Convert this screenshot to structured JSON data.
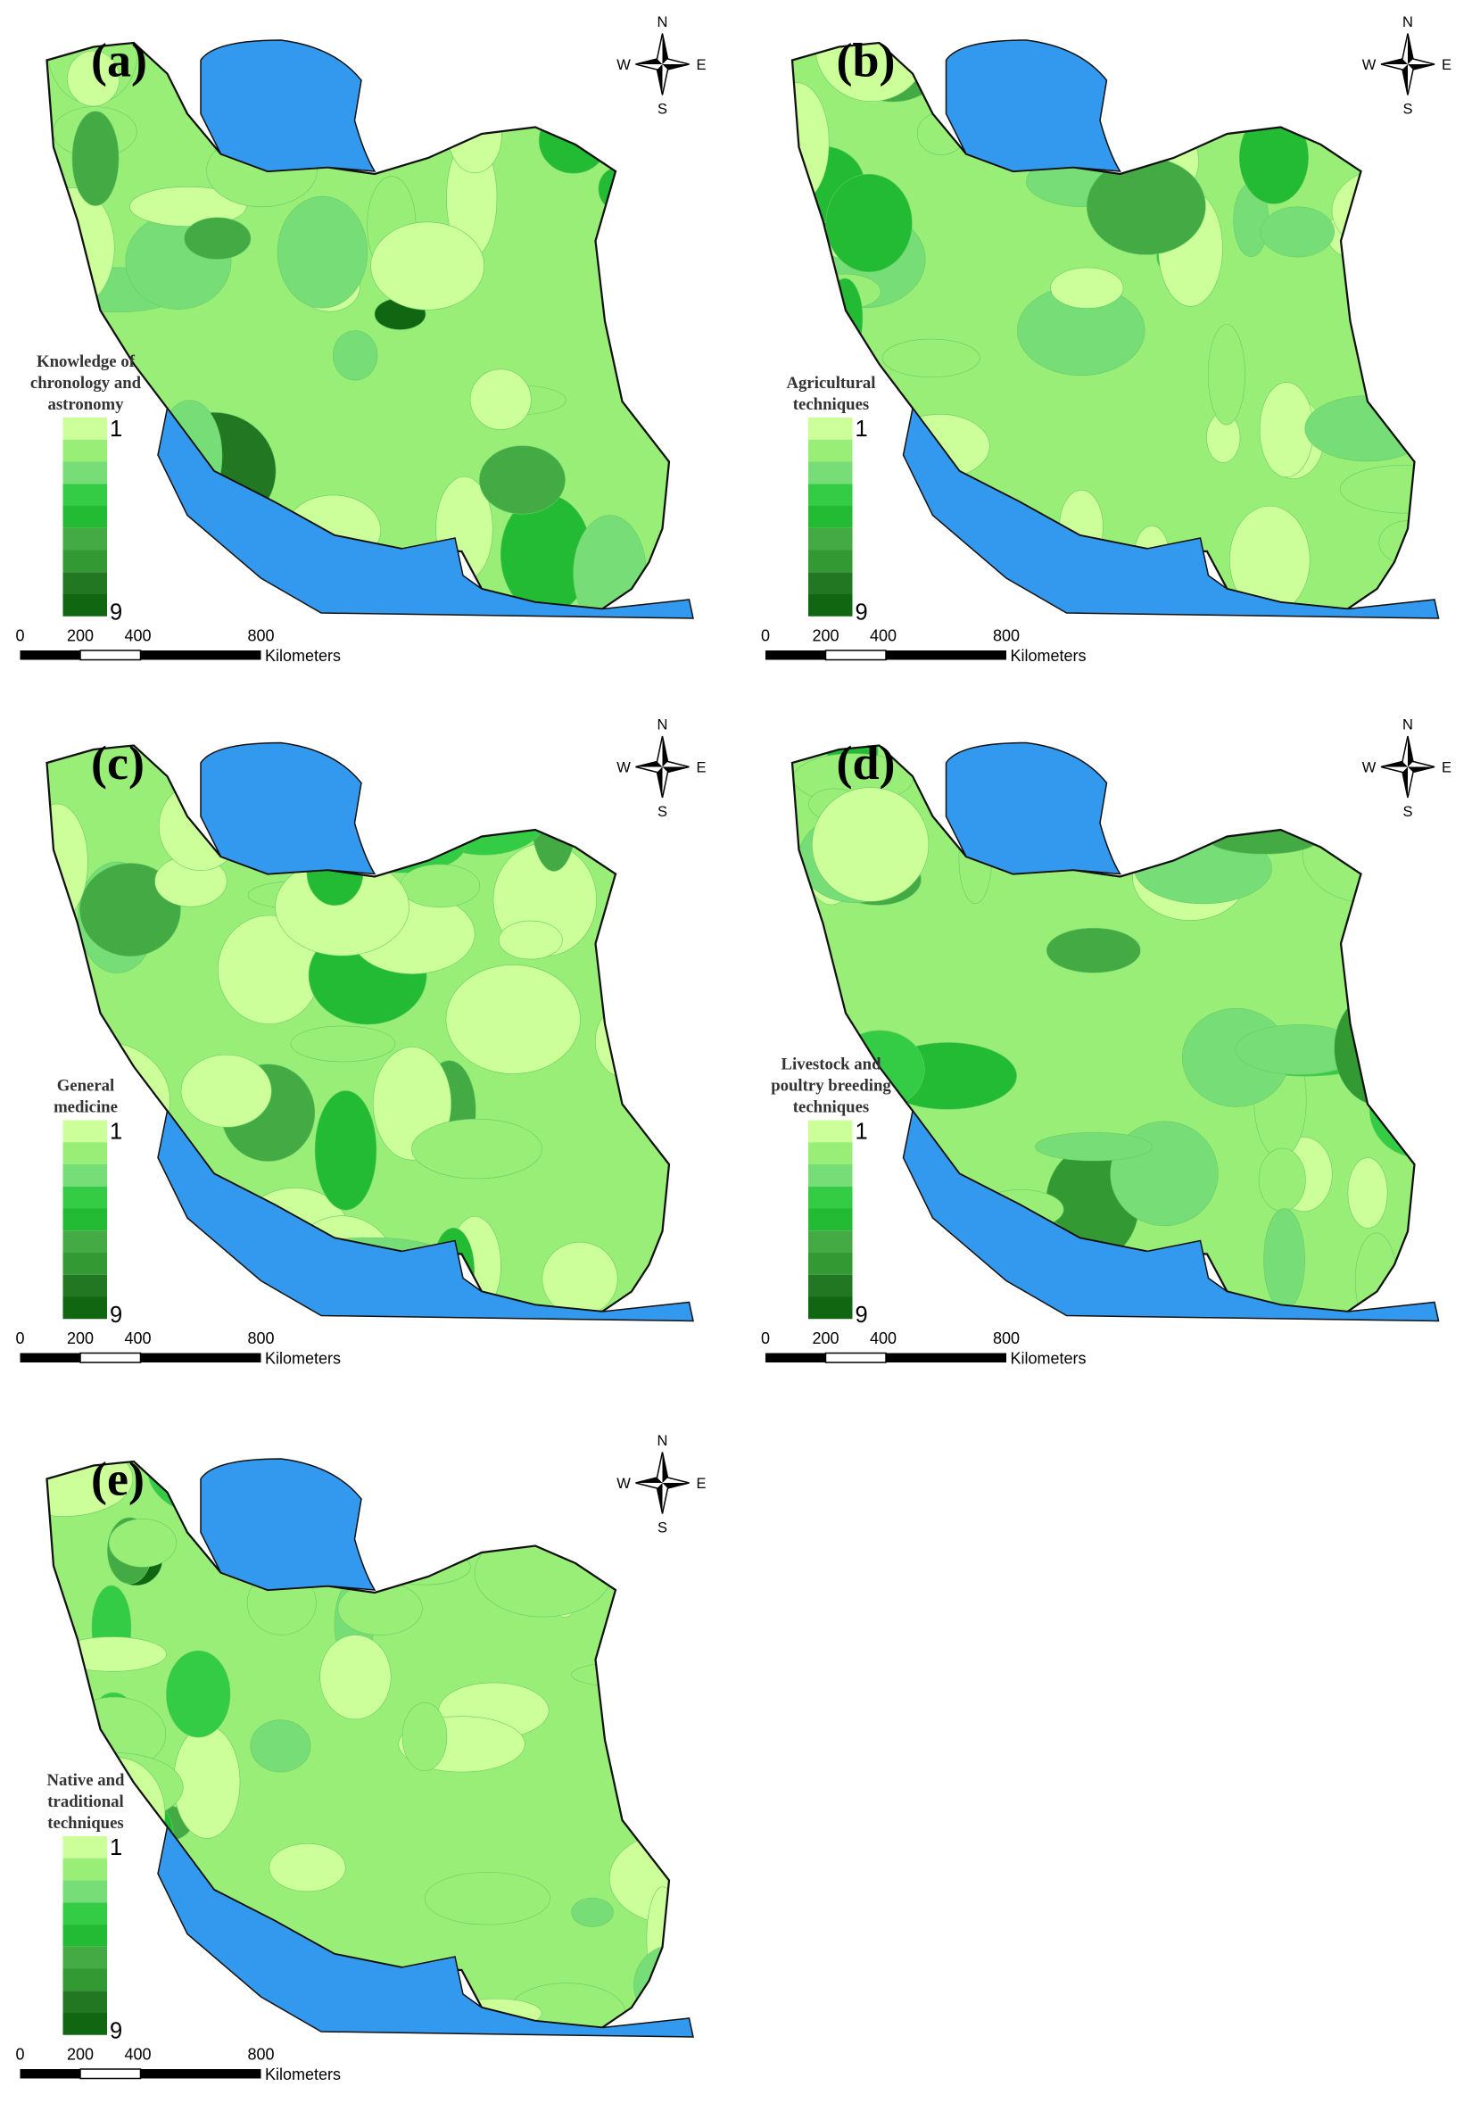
{
  "compass": {
    "n": "N",
    "s": "S",
    "w": "W",
    "e": "E"
  },
  "scale": {
    "ticks": [
      "0",
      "200",
      "400",
      "800"
    ],
    "unit": "Kilometers"
  },
  "legend": {
    "min": "1",
    "max": "9",
    "colors": [
      "#ccff99",
      "#99ee77",
      "#77dd77",
      "#33cc44",
      "#22bb33",
      "#44aa44",
      "#339933",
      "#227722",
      "#116611"
    ]
  },
  "panels": [
    {
      "label": "(a)",
      "legend_title": [
        "Knowledge of",
        "chronology and",
        "astronomy"
      ]
    },
    {
      "label": "(b)",
      "legend_title": [
        "Agricultural",
        "techniques"
      ]
    },
    {
      "label": "(c)",
      "legend_title": [
        "General",
        "medicine"
      ]
    },
    {
      "label": "(d)",
      "legend_title": [
        "Livestock and",
        "poultry breeding",
        "techniques"
      ]
    },
    {
      "label": "(e)",
      "legend_title": [
        "Native and",
        "traditional",
        "techniques"
      ]
    }
  ]
}
